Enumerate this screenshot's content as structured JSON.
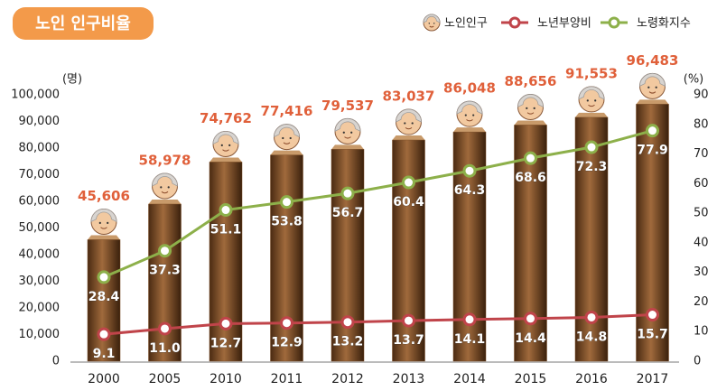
{
  "chart_data": {
    "type": "bar-line",
    "title": "노인 인구비율",
    "y_label": "(명)",
    "y2_label": "(%)",
    "categories": [
      "2000",
      "2005",
      "2010",
      "2011",
      "2012",
      "2013",
      "2014",
      "2015",
      "2016",
      "2017"
    ],
    "series": [
      {
        "name": "노인인구",
        "type": "bar",
        "color": "#7a4a22",
        "values": [
          45606,
          58978,
          74762,
          77416,
          79537,
          83037,
          86048,
          88656,
          91553,
          96483
        ],
        "value_labels": [
          "45,606",
          "58,978",
          "74,762",
          "77,416",
          "79,537",
          "83,037",
          "86,048",
          "88,656",
          "91,553",
          "96,483"
        ]
      },
      {
        "name": "노년부양비",
        "type": "line",
        "axis": "y2",
        "color": "#c0444a",
        "values": [
          9.1,
          11.0,
          12.7,
          12.9,
          13.2,
          13.7,
          14.1,
          14.4,
          14.8,
          15.7
        ],
        "value_labels": [
          "9.1",
          "11.0",
          "12.7",
          "12.9",
          "13.2",
          "13.7",
          "14.1",
          "14.4",
          "14.8",
          "15.7"
        ]
      },
      {
        "name": "노령화지수",
        "type": "line",
        "axis": "y2",
        "color": "#8db04a",
        "values": [
          28.4,
          37.3,
          51.1,
          53.8,
          56.7,
          60.4,
          64.3,
          68.6,
          72.3,
          77.9
        ],
        "value_labels": [
          "28.4",
          "37.3",
          "51.1",
          "53.8",
          "56.7",
          "60.4",
          "64.3",
          "68.6",
          "72.3",
          "77.9"
        ]
      }
    ],
    "ylim": [
      0,
      100000
    ],
    "yticks": [
      0,
      {
        "value": 10000,
        "label": "10,000"
      },
      {
        "value": 20000,
        "label": "20,000"
      },
      {
        "value": 30000,
        "label": "30,000"
      },
      {
        "value": 40000,
        "label": "40,000"
      },
      {
        "value": 50000,
        "label": "50,000"
      },
      {
        "value": 60000,
        "label": "60,000"
      },
      {
        "value": 70000,
        "label": "70,000"
      },
      {
        "value": 80000,
        "label": "80,000"
      },
      {
        "value": 90000,
        "label": "90,000"
      },
      {
        "value": 100000,
        "label": "100,000"
      }
    ],
    "y2lim": [
      0,
      90
    ],
    "y2ticks": [
      0,
      10,
      20,
      30,
      40,
      50,
      60,
      70,
      80,
      90
    ],
    "grid": false
  }
}
